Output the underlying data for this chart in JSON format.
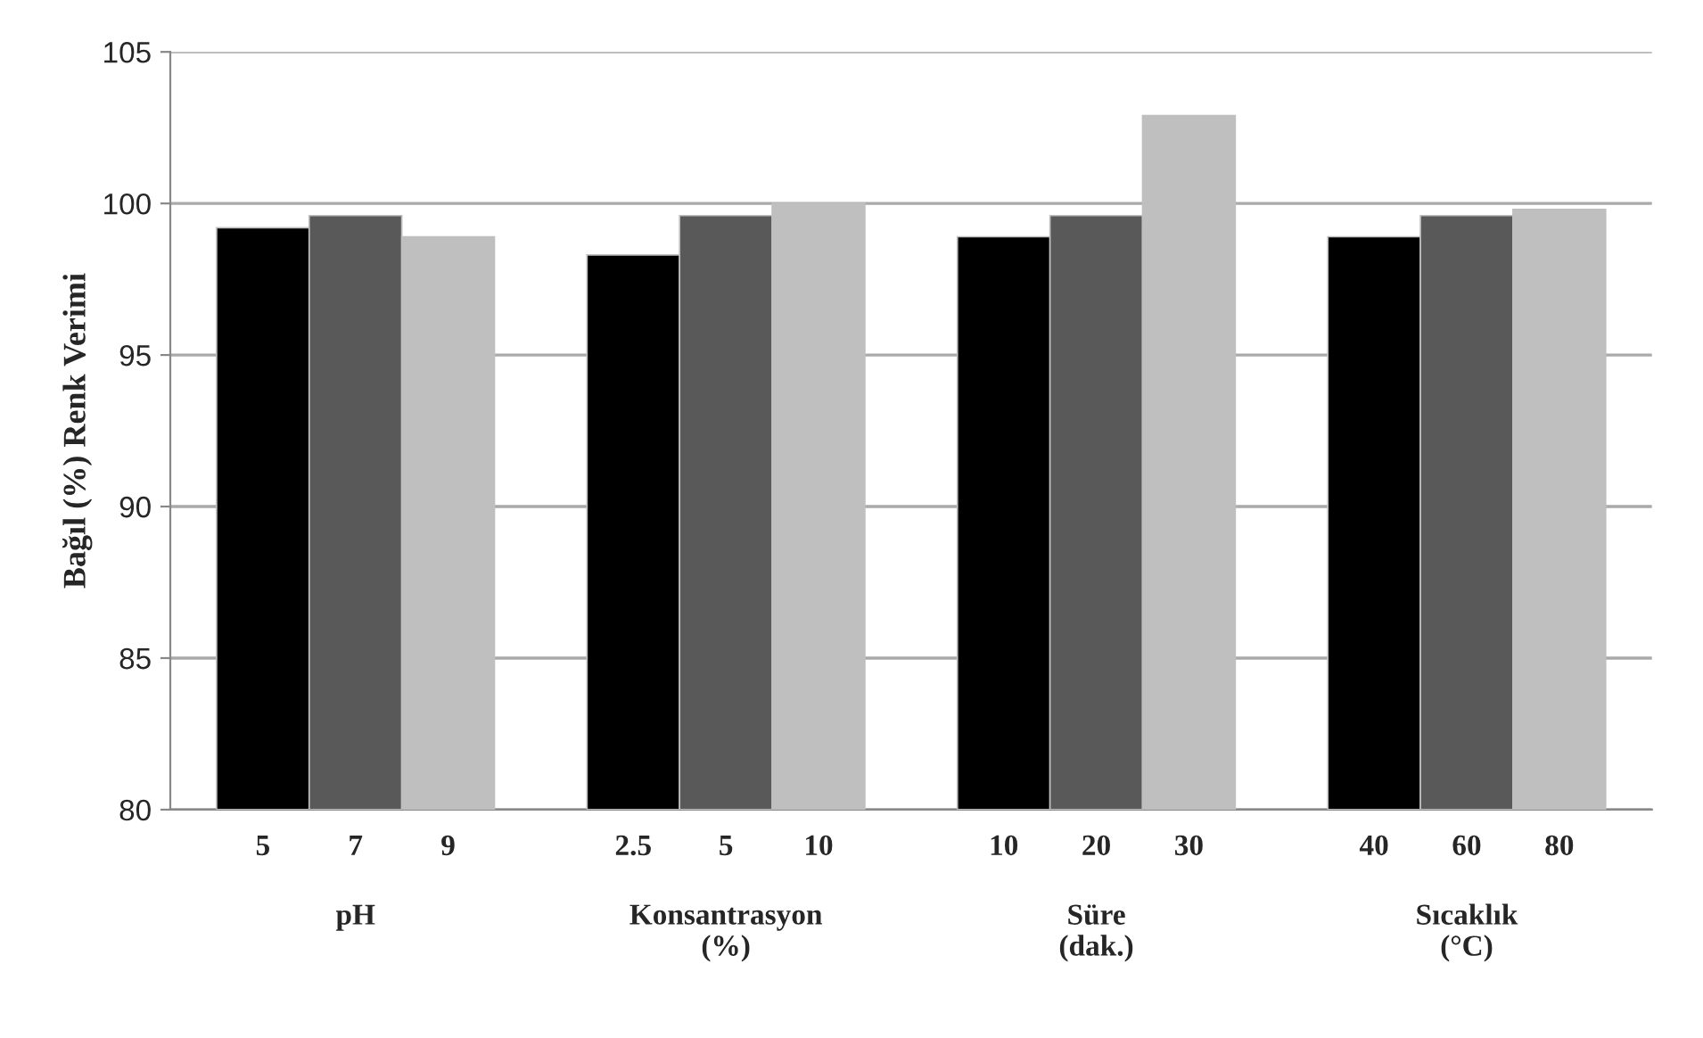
{
  "chart_data": {
    "type": "bar",
    "ylabel": "Bağıl (%) Renk Verimi",
    "categories": [
      "5",
      "7",
      "9",
      null,
      "2.5",
      "5",
      "10",
      null,
      "10",
      "20",
      "30",
      null,
      "40",
      "60",
      "80"
    ],
    "values": [
      99.2,
      99.6,
      98.9,
      null,
      98.3,
      99.6,
      100.0,
      null,
      98.9,
      99.6,
      102.9,
      null,
      98.9,
      99.6,
      99.8
    ],
    "colors": [
      "#000000",
      "#595959",
      "#bfbfbf",
      null,
      "#000000",
      "#595959",
      "#bfbfbf",
      null,
      "#000000",
      "#595959",
      "#bfbfbf",
      null,
      "#000000",
      "#595959",
      "#bfbfbf"
    ],
    "annotations": [
      "pH",
      "Konsantrasyon\n(%)",
      "Süre\n(dak.)",
      "Sıcaklık\n(°C)"
    ],
    "ylim": [
      80,
      105
    ],
    "yticks": [
      80,
      85,
      90,
      95,
      100,
      105
    ],
    "grid": "y"
  }
}
